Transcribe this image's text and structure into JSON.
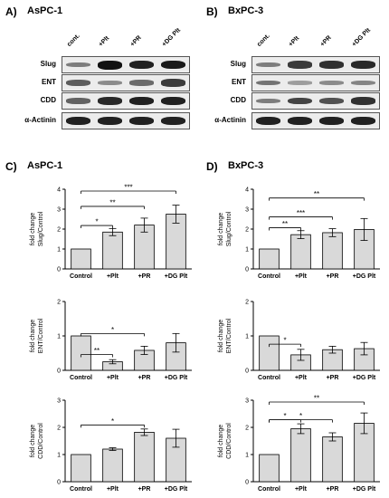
{
  "panels": {
    "A": {
      "letter": "A)",
      "title": "AsPC-1"
    },
    "B": {
      "letter": "B)",
      "title": "BxPC-3"
    },
    "C": {
      "letter": "C)",
      "title": "AsPC-1"
    },
    "D": {
      "letter": "D)",
      "title": "BxPC-3"
    }
  },
  "lanes": [
    "cont.",
    "+Plt",
    "+PR",
    "+DG Plt"
  ],
  "blot_rows": [
    "Slug",
    "ENT",
    "CDD",
    "α-Actinin"
  ],
  "blots": {
    "AsPC-1": {
      "Slug": [
        0.35,
        1.0,
        0.9,
        0.95
      ],
      "ENT": [
        0.55,
        0.25,
        0.45,
        0.75
      ],
      "CDD": [
        0.5,
        0.85,
        0.9,
        0.9
      ],
      "α-Actinin": [
        0.9,
        0.9,
        0.9,
        0.9
      ]
    },
    "BxPC-3": {
      "Slug": [
        0.35,
        0.75,
        0.8,
        0.85
      ],
      "ENT": [
        0.4,
        0.15,
        0.25,
        0.3
      ],
      "CDD": [
        0.35,
        0.7,
        0.6,
        0.8
      ],
      "α-Actinin": [
        0.9,
        0.9,
        0.9,
        0.9
      ]
    }
  },
  "chart_data": [
    {
      "type": "bar",
      "id": "C-slug",
      "categories": [
        "Control",
        "+Plt",
        "+PR",
        "+DG Plt"
      ],
      "values": [
        1.0,
        1.85,
        2.2,
        2.75
      ],
      "errors": [
        0,
        0.18,
        0.35,
        0.45
      ],
      "ylabel": "fold change\nSlug/Control",
      "ylim": [
        0,
        4
      ],
      "yticks": [
        0,
        1,
        2,
        3,
        4
      ],
      "sig": [
        {
          "from": 0,
          "to": 1,
          "label": "*"
        },
        {
          "from": 0,
          "to": 2,
          "label": "**"
        },
        {
          "from": 0,
          "to": 3,
          "label": "***"
        }
      ]
    },
    {
      "type": "bar",
      "id": "C-ent",
      "categories": [
        "Control",
        "+Plt",
        "+PR",
        "+DG Plt"
      ],
      "values": [
        1.0,
        0.25,
        0.58,
        0.8
      ],
      "errors": [
        0,
        0.06,
        0.12,
        0.27
      ],
      "ylabel": "fold change\nENT/Control",
      "ylim": [
        0,
        2
      ],
      "yticks": [
        0,
        1,
        2
      ],
      "sig": [
        {
          "from": 0,
          "to": 1,
          "label": "**"
        },
        {
          "from": 0,
          "to": 2,
          "label": "*"
        }
      ]
    },
    {
      "type": "bar",
      "id": "C-cdd",
      "categories": [
        "Control",
        "+Plt",
        "+PR",
        "+DG Plt"
      ],
      "values": [
        1.0,
        1.2,
        1.82,
        1.6
      ],
      "errors": [
        0,
        0.05,
        0.12,
        0.33
      ],
      "ylabel": "fold change\nCDD/Control",
      "ylim": [
        0,
        3
      ],
      "yticks": [
        0,
        1,
        2,
        3
      ],
      "sig": [
        {
          "from": 0,
          "to": 2,
          "label": "*"
        }
      ]
    },
    {
      "type": "bar",
      "id": "D-slug",
      "categories": [
        "Control",
        "+Plt",
        "+PR",
        "+DG Plt"
      ],
      "values": [
        1.0,
        1.72,
        1.82,
        1.98
      ],
      "errors": [
        0,
        0.2,
        0.2,
        0.55
      ],
      "ylabel": "fold change\nSlug/Control",
      "ylim": [
        0,
        4
      ],
      "yticks": [
        0,
        1,
        2,
        3,
        4
      ],
      "sig": [
        {
          "from": 0,
          "to": 1,
          "label": "**"
        },
        {
          "from": 0,
          "to": 2,
          "label": "***"
        },
        {
          "from": 0,
          "to": 3,
          "label": "**"
        }
      ]
    },
    {
      "type": "bar",
      "id": "D-ent",
      "categories": [
        "Control",
        "+Plt",
        "+PR",
        "+DG Plt"
      ],
      "values": [
        1.0,
        0.45,
        0.6,
        0.63
      ],
      "errors": [
        0,
        0.16,
        0.1,
        0.18
      ],
      "ylabel": "fold change\nENT/Control",
      "ylim": [
        0,
        2
      ],
      "yticks": [
        0,
        1,
        2
      ],
      "sig": [
        {
          "from": 0,
          "to": 1,
          "label": "*"
        }
      ]
    },
    {
      "type": "bar",
      "id": "D-cdd",
      "categories": [
        "Control",
        "+Plt",
        "+PR",
        "+DG Plt"
      ],
      "values": [
        1.0,
        1.95,
        1.65,
        2.15
      ],
      "errors": [
        0,
        0.18,
        0.15,
        0.38
      ],
      "ylabel": "fold change\nCDD/Control",
      "ylim": [
        0,
        3
      ],
      "yticks": [
        0,
        1,
        2,
        3
      ],
      "sig": [
        {
          "from": 0,
          "to": 1,
          "label": "*"
        },
        {
          "from": 0,
          "to": 2,
          "label": "*"
        },
        {
          "from": 0,
          "to": 3,
          "label": "**"
        }
      ]
    }
  ]
}
